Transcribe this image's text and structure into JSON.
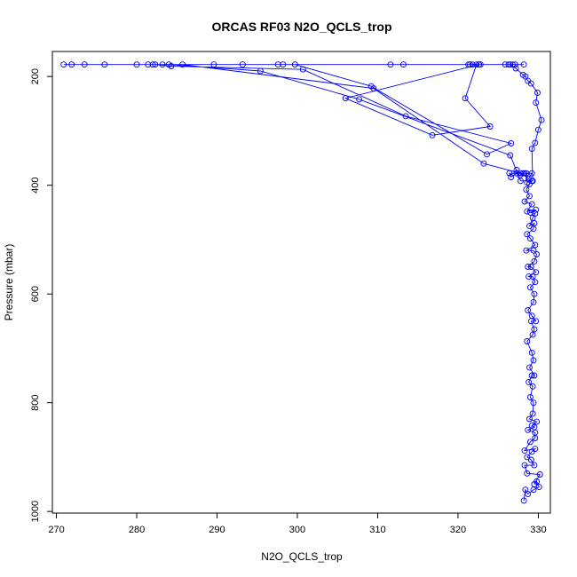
{
  "chart_data": {
    "type": "line",
    "title": "ORCAS RF03 N2O_QCLS_trop",
    "xlabel": "N2O_QCLS_trop",
    "ylabel": "Pressure (mbar)",
    "xlim": [
      269.5,
      331.5
    ],
    "ylim": [
      1003,
      154
    ],
    "y_reversed": true,
    "x_ticks": [
      270,
      280,
      290,
      300,
      310,
      320,
      330
    ],
    "y_ticks": [
      200,
      400,
      600,
      800,
      1000
    ],
    "grid": false,
    "legend": "none",
    "marker": "open-circle",
    "series": [
      {
        "color": "#0000ff",
        "points": [
          [
            328.2,
            980
          ],
          [
            328.4,
            960
          ],
          [
            328.7,
            968
          ],
          [
            329.4,
            960
          ],
          [
            330.1,
            955
          ],
          [
            329.8,
            945
          ],
          [
            329.5,
            950
          ],
          [
            330.2,
            932
          ],
          [
            328.6,
            930
          ],
          [
            328.3,
            915
          ],
          [
            329.5,
            915
          ],
          [
            329.1,
            905
          ],
          [
            328.6,
            900
          ],
          [
            329.2,
            890
          ],
          [
            329.6,
            885
          ],
          [
            328.3,
            888
          ],
          [
            329.0,
            872
          ],
          [
            329.6,
            865
          ],
          [
            329.6,
            855
          ],
          [
            328.7,
            850
          ],
          [
            329.5,
            845
          ],
          [
            329.2,
            842
          ],
          [
            329.8,
            835
          ],
          [
            328.9,
            830
          ],
          [
            329.3,
            820
          ],
          [
            329.4,
            800
          ],
          [
            329.0,
            790
          ],
          [
            329.3,
            770
          ],
          [
            328.8,
            762
          ],
          [
            329.2,
            750
          ],
          [
            329.5,
            750
          ],
          [
            328.9,
            735
          ],
          [
            329.4,
            722
          ],
          [
            329.2,
            708
          ],
          [
            328.6,
            687
          ],
          [
            329.3,
            675
          ],
          [
            329.5,
            665
          ],
          [
            329.1,
            650
          ],
          [
            329.7,
            650
          ],
          [
            329.2,
            640
          ],
          [
            328.7,
            630
          ],
          [
            329.4,
            615
          ],
          [
            329.5,
            600
          ],
          [
            329.0,
            588
          ],
          [
            329.6,
            578
          ],
          [
            329.3,
            568
          ],
          [
            328.8,
            568
          ],
          [
            329.7,
            560
          ],
          [
            329.1,
            550
          ],
          [
            328.7,
            550
          ],
          [
            329.5,
            540
          ],
          [
            329.8,
            527
          ],
          [
            329.4,
            520
          ],
          [
            328.5,
            520
          ],
          [
            329.6,
            510
          ],
          [
            329.0,
            498
          ],
          [
            328.6,
            490
          ],
          [
            329.4,
            480
          ],
          [
            329.5,
            470
          ],
          [
            328.9,
            475
          ],
          [
            329.3,
            460
          ],
          [
            329.6,
            452
          ],
          [
            329.0,
            450
          ],
          [
            329.7,
            445
          ],
          [
            328.6,
            448
          ],
          [
            329.2,
            435
          ],
          [
            328.3,
            430
          ],
          [
            328.9,
            420
          ],
          [
            328.5,
            408
          ],
          [
            328.9,
            398
          ],
          [
            329.2,
            392
          ],
          [
            328.6,
            395
          ],
          [
            328.5,
            378
          ],
          [
            328.1,
            378
          ],
          [
            327.7,
            382
          ],
          [
            327.3,
            378
          ],
          [
            326.6,
            385
          ],
          [
            326.4,
            378
          ],
          [
            328.3,
            378
          ],
          [
            329.2,
            378
          ],
          [
            328.8,
            388
          ],
          [
            327.3,
            372
          ],
          [
            327.8,
            378
          ],
          [
            323.2,
            360
          ],
          [
            309.5,
            222
          ],
          [
            285.7,
            178
          ],
          [
            328.2,
            178
          ],
          [
            327.1,
            178
          ],
          [
            326.8,
            178
          ],
          [
            326.3,
            178
          ],
          [
            322.8,
            178
          ],
          [
            322.6,
            178
          ],
          [
            321.5,
            178
          ],
          [
            321.3,
            178
          ],
          [
            313.2,
            178
          ],
          [
            311.6,
            178
          ],
          [
            298.2,
            178
          ],
          [
            293.2,
            178
          ],
          [
            289.6,
            178
          ],
          [
            283.2,
            178
          ],
          [
            281.4,
            178
          ],
          [
            280.0,
            178
          ],
          [
            276.0,
            178
          ],
          [
            273.5,
            178
          ],
          [
            271.9,
            178
          ],
          [
            270.9,
            178
          ],
          [
            297.6,
            178
          ],
          [
            299.7,
            178
          ],
          [
            309.2,
            218
          ],
          [
            323.6,
            343
          ],
          [
            326.6,
            323
          ],
          [
            313.5,
            273
          ],
          [
            300.7,
            187
          ],
          [
            284.3,
            181
          ],
          [
            282.3,
            178
          ],
          [
            282.0,
            178
          ],
          [
            284.0,
            178
          ],
          [
            295.4,
            190
          ],
          [
            307.7,
            242
          ],
          [
            326.5,
            345
          ],
          [
            327.8,
            392
          ],
          [
            329.3,
            392
          ],
          [
            329.2,
            333
          ],
          [
            329.6,
            322
          ],
          [
            330.0,
            298
          ],
          [
            330.4,
            280
          ],
          [
            329.7,
            248
          ],
          [
            329.9,
            230
          ],
          [
            329.1,
            213
          ],
          [
            328.7,
            208
          ],
          [
            328.4,
            200
          ],
          [
            328.1,
            197
          ],
          [
            327.2,
            185
          ],
          [
            326.5,
            178
          ],
          [
            325.9,
            178
          ],
          [
            321.8,
            178
          ],
          [
            322.3,
            178
          ],
          [
            320.9,
            240
          ],
          [
            324.0,
            292
          ],
          [
            316.8,
            308
          ],
          [
            306.0,
            240
          ],
          [
            322.6,
            178
          ]
        ]
      }
    ]
  }
}
